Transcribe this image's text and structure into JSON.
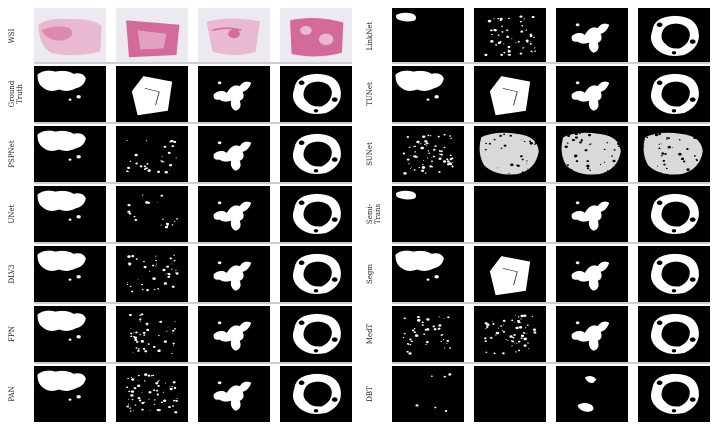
{
  "left_panel": {
    "row_labels": [
      "WSI",
      "Ground\nTruth",
      "PSPNet",
      "UNet",
      "DLV3",
      "FPN",
      "PAN"
    ]
  },
  "right_panel": {
    "row_labels": [
      "LinkNet",
      "TUNet",
      "SUNet",
      "Semi-\nTrans",
      "Segm",
      "MedT",
      "DBT"
    ]
  },
  "colors": {
    "background": "#000000",
    "mask": "#ffffff",
    "tissue_pink": "#d46a9a",
    "tissue_light": "#e9b9d2",
    "wsi_bg": "#eceaf0"
  }
}
